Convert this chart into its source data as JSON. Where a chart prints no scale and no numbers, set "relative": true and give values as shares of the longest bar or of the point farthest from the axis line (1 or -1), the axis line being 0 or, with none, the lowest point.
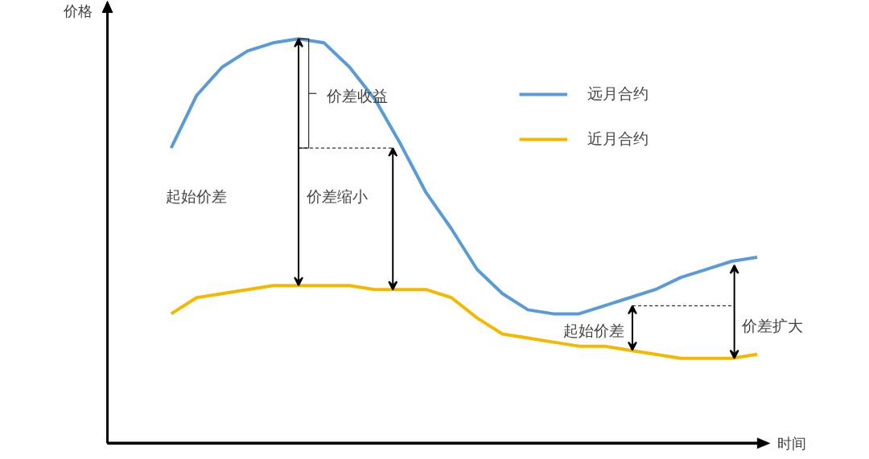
{
  "chart_data": {
    "type": "line",
    "relative": true,
    "xlabel": "时间",
    "ylabel": "价格",
    "legend": "top right",
    "categories": [
      null,
      null,
      null,
      null,
      null,
      null,
      null,
      null,
      null,
      null,
      null,
      null,
      null,
      null,
      null,
      null,
      null,
      null,
      null,
      null,
      null,
      null,
      null,
      null
    ],
    "series": [
      {
        "name": "远月合约",
        "color": "#5b9bd5",
        "values": [
          0.73,
          0.86,
          0.93,
          0.97,
          0.99,
          1.0,
          0.99,
          0.93,
          0.85,
          0.74,
          0.62,
          0.53,
          0.43,
          0.37,
          0.33,
          0.32,
          0.32,
          0.34,
          0.36,
          0.38,
          0.41,
          0.43,
          0.45,
          0.46
        ]
      },
      {
        "name": "近月合约",
        "color": "#f5b800",
        "values": [
          0.32,
          0.36,
          0.37,
          0.38,
          0.39,
          0.39,
          0.39,
          0.39,
          0.38,
          0.38,
          0.38,
          0.36,
          0.31,
          0.27,
          0.26,
          0.25,
          0.24,
          0.24,
          0.23,
          0.22,
          0.21,
          0.21,
          0.21,
          0.22
        ]
      }
    ],
    "annotations": [
      "价差收益",
      "起始价差",
      "价差缩小",
      "起始价差",
      "价差扩大"
    ]
  }
}
